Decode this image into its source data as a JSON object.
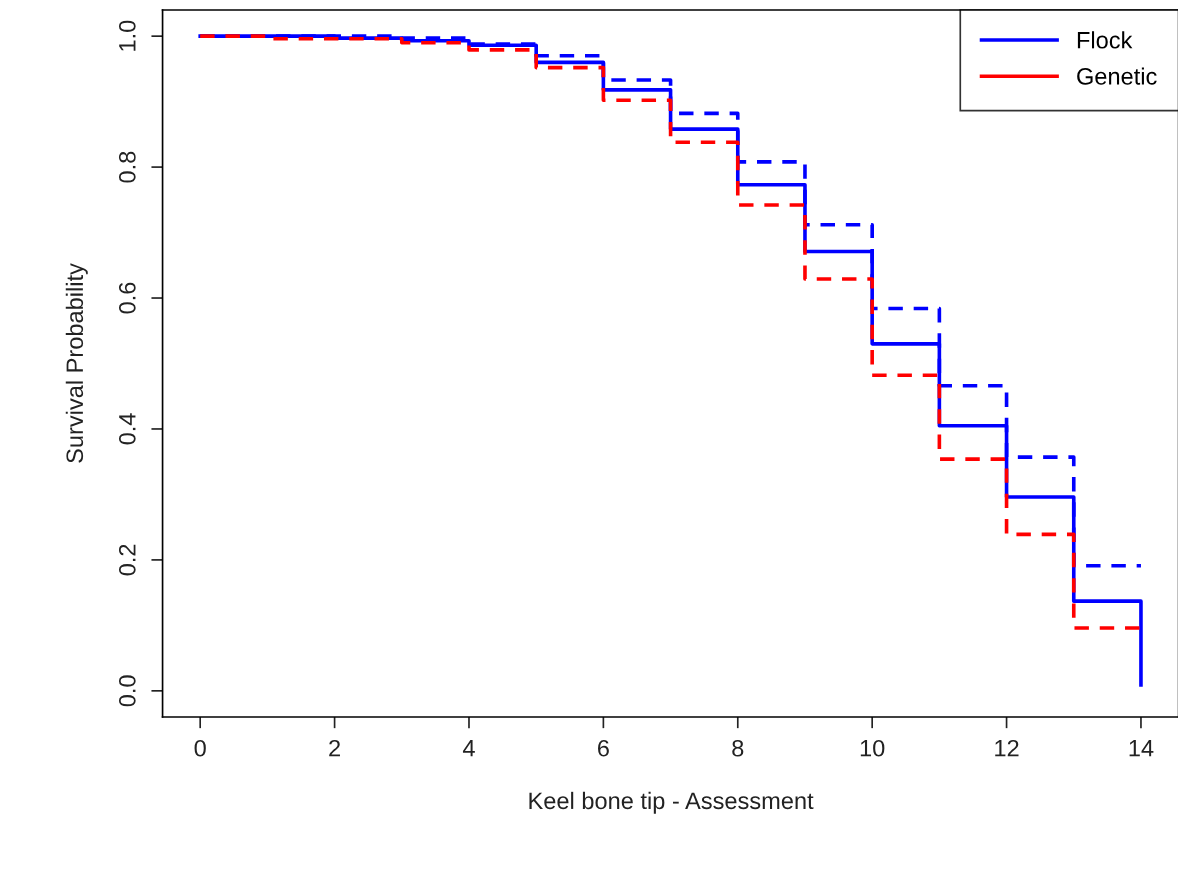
{
  "chart_data": {
    "type": "step",
    "xlabel": "Keel bone tip - Assessment",
    "ylabel": "Survival Probability",
    "x": [
      0,
      1,
      2,
      3,
      4,
      5,
      6,
      7,
      8,
      9,
      10,
      11,
      12,
      13,
      14
    ],
    "series": [
      {
        "name": "Flock",
        "color": "#0000ff",
        "line_style": "solid",
        "values": [
          1.0,
          1.0,
          0.997,
          0.993,
          0.986,
          0.96,
          0.918,
          0.858,
          0.773,
          0.671,
          0.53,
          0.405,
          0.296,
          0.137,
          0.009
        ]
      },
      {
        "color": "#0000ff",
        "line_style": "dashed",
        "values": [
          1.0,
          1.0,
          1.0,
          0.997,
          0.988,
          0.97,
          0.933,
          0.882,
          0.808,
          0.712,
          0.584,
          0.466,
          0.357,
          0.191,
          0.191
        ]
      },
      {
        "name": "Genetic",
        "color": "#ff0000",
        "line_style": "dashed",
        "values": [
          1.0,
          0.996,
          0.996,
          0.99,
          0.979,
          0.952,
          0.902,
          0.838,
          0.742,
          0.629,
          0.482,
          0.354,
          0.239,
          0.096,
          0.096
        ]
      }
    ],
    "xlim": [
      -0.56,
      14.56
    ],
    "ylim": [
      -0.04,
      1.04
    ],
    "xticks": [
      0,
      2,
      4,
      6,
      8,
      10,
      12,
      14
    ],
    "yticks": [
      {
        "value": 0,
        "label": "0.0"
      },
      {
        "value": 0.2,
        "label": "0.2"
      },
      {
        "value": 0.4,
        "label": "0.4"
      },
      {
        "value": 0.6,
        "label": "0.6"
      },
      {
        "value": 0.8,
        "label": "0.8"
      },
      {
        "value": 1.0,
        "label": "1.0"
      }
    ],
    "grid": false,
    "legend": "top right"
  }
}
